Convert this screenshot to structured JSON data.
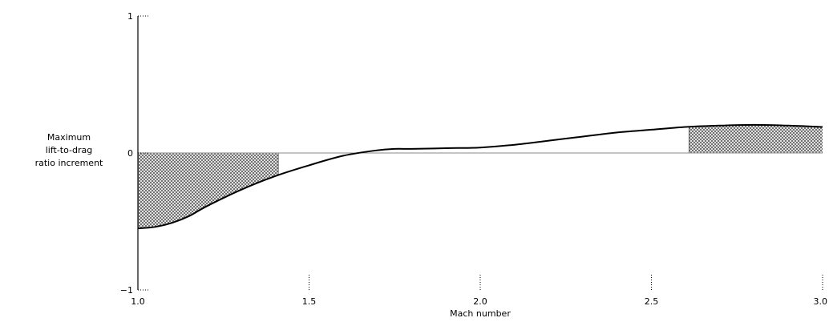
{
  "chart_data": {
    "type": "line",
    "title": "",
    "xlabel": "Mach number",
    "ylabel_lines": [
      "Maximum",
      "lift-to-drag",
      "ratio increment"
    ],
    "xlim": [
      1.0,
      3.0
    ],
    "ylim": [
      -1,
      1
    ],
    "x_ticks": [
      {
        "value": 1.0,
        "label": "1.0"
      },
      {
        "value": 1.5,
        "label": "1.5"
      },
      {
        "value": 2.0,
        "label": "2.0"
      },
      {
        "value": 2.5,
        "label": "2.5"
      },
      {
        "value": 3.0,
        "label": "3.0"
      }
    ],
    "y_ticks": [
      {
        "value": 1,
        "label": "1"
      },
      {
        "value": 0,
        "label": "0"
      },
      {
        "value": -1,
        "label": "−1"
      }
    ],
    "grid": false,
    "series": [
      {
        "x": [
          1.0,
          1.05,
          1.1,
          1.15,
          1.2,
          1.3,
          1.4,
          1.5,
          1.6,
          1.7,
          1.75,
          1.8,
          1.9,
          2.0,
          2.1,
          2.2,
          2.3,
          2.4,
          2.5,
          2.6,
          2.7,
          2.8,
          2.9,
          3.0
        ],
        "y": [
          -0.55,
          -0.54,
          -0.51,
          -0.46,
          -0.39,
          -0.27,
          -0.17,
          -0.09,
          -0.02,
          0.02,
          0.03,
          0.03,
          0.035,
          0.04,
          0.06,
          0.09,
          0.12,
          0.15,
          0.17,
          0.19,
          0.2,
          0.205,
          0.2,
          0.19
        ],
        "color": "#000000"
      }
    ],
    "shaded_regions": [
      {
        "x_from": 1.0,
        "x_to": 1.41,
        "style": "crosshatch"
      },
      {
        "x_from": 2.61,
        "x_to": 3.0,
        "style": "crosshatch"
      }
    ]
  }
}
